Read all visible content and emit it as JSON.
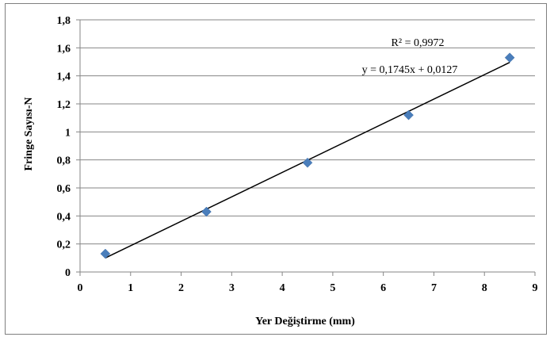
{
  "chart_data": {
    "type": "scatter",
    "xlabel": "Yer Değiştirme (mm)",
    "ylabel": "Fringe Sayısı-N",
    "xlim": [
      0,
      9
    ],
    "ylim": [
      0,
      1.8
    ],
    "x_ticks": [
      "0",
      "1",
      "2",
      "3",
      "4",
      "5",
      "6",
      "7",
      "8",
      "9"
    ],
    "y_ticks": [
      "0",
      "0,2",
      "0,4",
      "0,6",
      "0,8",
      "1",
      "1,2",
      "1,4",
      "1,6",
      "1,8"
    ],
    "series": [
      {
        "x": [
          0.5,
          2.5,
          4.5,
          6.5,
          8.5
        ],
        "y": [
          0.13,
          0.43,
          0.78,
          1.12,
          1.53
        ]
      }
    ],
    "trendline": {
      "slope": 0.1745,
      "intercept": 0.0127,
      "x_range": [
        0.5,
        8.5
      ]
    },
    "r_squared_text": "R² = 0,9972",
    "equation_text": "y = 0,1745x + 0,0127",
    "grid": "horizontal",
    "colors": {
      "marker": "#4a7ebb",
      "trendline": "#000000",
      "grid": "#868686",
      "axis": "#868686"
    }
  }
}
